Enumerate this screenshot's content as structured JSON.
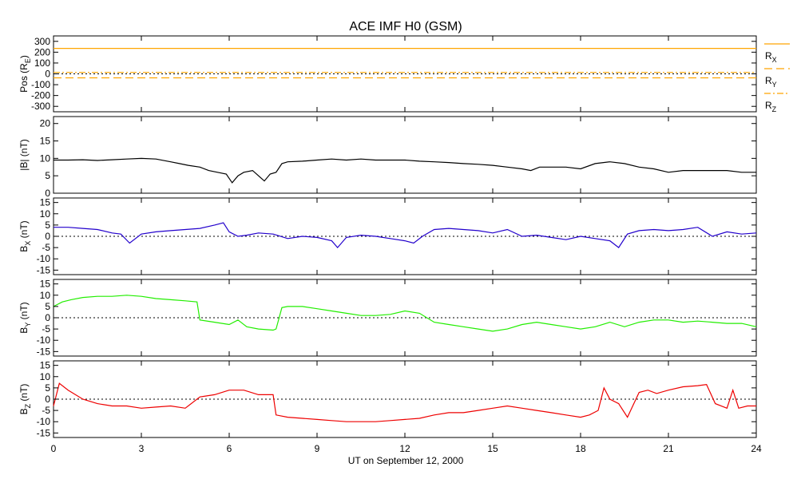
{
  "chart_data": {
    "title": "ACE IMF H0 (GSM)",
    "xlabel": "UT on September 12, 2000",
    "x_ticks": [
      "0",
      "3",
      "6",
      "9",
      "12",
      "15",
      "18",
      "21",
      "24"
    ],
    "x_range": [
      0,
      24
    ],
    "panels": [
      {
        "id": "pos",
        "type": "line",
        "ylabel_main": "Pos (R",
        "ylabel_sub": "E",
        "ylabel_tail": ")",
        "ylim": [
          -350,
          350
        ],
        "y_ticks": [
          300,
          200,
          100,
          0,
          -100,
          -200,
          -300
        ],
        "zero_line": true,
        "legend": [
          {
            "main": "R",
            "sub": "X",
            "style": "solid"
          },
          {
            "main": "R",
            "sub": "Y",
            "style": "dashed"
          },
          {
            "main": "R",
            "sub": "Z",
            "style": "dashdot"
          }
        ],
        "series": [
          {
            "name": "RX",
            "color": "#ffa500",
            "style": "solid",
            "x": [
              0,
              24
            ],
            "y": [
              235,
              235
            ]
          },
          {
            "name": "RY",
            "color": "#ffa500",
            "style": "dashed",
            "x": [
              0,
              24
            ],
            "y": [
              -37,
              -37
            ]
          },
          {
            "name": "RZ",
            "color": "#ffa500",
            "style": "dashdot",
            "x": [
              0,
              24
            ],
            "y": [
              13,
              13
            ]
          }
        ]
      },
      {
        "id": "btotal",
        "type": "line",
        "ylabel_main": "|B| (nT)",
        "ylim": [
          0,
          22
        ],
        "y_ticks": [
          20,
          15,
          10,
          5,
          0
        ],
        "zero_line": false,
        "series": [
          {
            "name": "|B|",
            "color": "#000000",
            "x": [
              0,
              0.5,
              1,
              1.5,
              2,
              2.5,
              3,
              3.5,
              4,
              4.3,
              4.6,
              5,
              5.3,
              5.6,
              5.9,
              6.1,
              6.3,
              6.5,
              6.8,
              7,
              7.2,
              7.4,
              7.6,
              7.8,
              8,
              8.5,
              9,
              9.5,
              10,
              10.5,
              11,
              11.5,
              12,
              12.5,
              13,
              13.5,
              14,
              14.5,
              15,
              15.5,
              16,
              16.3,
              16.6,
              17,
              17.5,
              18,
              18.5,
              19,
              19.5,
              20,
              20.5,
              21,
              21.5,
              22,
              22.5,
              23,
              23.5,
              24
            ],
            "y": [
              9.5,
              9.5,
              9.6,
              9.4,
              9.6,
              9.8,
              10,
              9.8,
              9,
              8.5,
              8,
              7.5,
              6.5,
              6,
              5.5,
              3,
              5,
              6,
              6.5,
              5,
              3.5,
              5.5,
              6,
              8.5,
              9,
              9.2,
              9.5,
              9.8,
              9.5,
              9.8,
              9.5,
              9.5,
              9.5,
              9.2,
              9,
              8.8,
              8.5,
              8.3,
              8,
              7.5,
              7,
              6.5,
              7.5,
              7.5,
              7.5,
              7,
              8.5,
              9,
              8.5,
              7.5,
              7,
              6,
              6.5,
              6.5,
              6.5,
              6.5,
              6,
              6
            ]
          }
        ]
      },
      {
        "id": "bx",
        "type": "line",
        "ylabel_main": "B",
        "ylabel_sub": "X",
        "ylabel_tail": " (nT)",
        "ylim": [
          -17,
          17
        ],
        "y_ticks": [
          15,
          10,
          5,
          0,
          -5,
          -10,
          -15
        ],
        "zero_line": true,
        "series": [
          {
            "name": "BX",
            "color": "#2200cc",
            "x": [
              0,
              0.5,
              1,
              1.5,
              2,
              2.3,
              2.6,
              3,
              3.5,
              4,
              4.5,
              5,
              5.5,
              5.8,
              6,
              6.3,
              6.6,
              7,
              7.5,
              8,
              8.5,
              9,
              9.5,
              9.7,
              10,
              10.5,
              11,
              11.5,
              12,
              12.3,
              12.6,
              13,
              13.5,
              14,
              14.5,
              15,
              15.5,
              16,
              16.5,
              17,
              17.5,
              18,
              18.5,
              19,
              19.3,
              19.6,
              20,
              20.5,
              21,
              21.5,
              22,
              22.5,
              23,
              23.5,
              24
            ],
            "y": [
              4,
              4,
              3.5,
              3,
              1.5,
              1,
              -3,
              1,
              2,
              2.5,
              3,
              3.5,
              5,
              6,
              2,
              0,
              0.5,
              1.5,
              1,
              -1,
              0,
              -0.5,
              -2,
              -5,
              -0.5,
              0.5,
              0,
              -1,
              -2,
              -3,
              0,
              3,
              3.5,
              3,
              2.5,
              1.5,
              3,
              0,
              0.5,
              -0.5,
              -1.5,
              0,
              -1,
              -2,
              -5,
              1,
              2.5,
              3,
              2.5,
              3,
              4,
              0,
              2,
              1,
              1.5
            ]
          }
        ]
      },
      {
        "id": "by",
        "type": "line",
        "ylabel_main": "B",
        "ylabel_sub": "Y",
        "ylabel_tail": " (nT)",
        "ylim": [
          -17,
          17
        ],
        "y_ticks": [
          15,
          10,
          5,
          0,
          -5,
          -10,
          -15
        ],
        "zero_line": true,
        "series": [
          {
            "name": "BY",
            "color": "#22ee00",
            "x": [
              0,
              0.3,
              0.6,
              1,
              1.5,
              2,
              2.5,
              3,
              3.5,
              4,
              4.5,
              4.9,
              5,
              5.5,
              6,
              6.3,
              6.6,
              7,
              7.5,
              7.6,
              7.8,
              8,
              8.5,
              9,
              9.5,
              10,
              10.5,
              11,
              11.5,
              12,
              12.5,
              13,
              13.5,
              14,
              14.5,
              15,
              15.5,
              16,
              16.5,
              17,
              17.5,
              18,
              18.5,
              19,
              19.5,
              20,
              20.5,
              21,
              21.5,
              22,
              22.5,
              23,
              23.5,
              24
            ],
            "y": [
              5,
              7,
              8,
              9,
              9.5,
              9.5,
              10,
              9.5,
              8.5,
              8,
              7.5,
              7,
              -1,
              -2,
              -3,
              -1,
              -4,
              -5,
              -5.5,
              -5,
              4.5,
              5,
              5,
              4,
              3,
              2,
              1,
              1,
              1.5,
              3,
              2,
              -2,
              -3,
              -4,
              -5,
              -6,
              -5,
              -3,
              -2,
              -3,
              -4,
              -5,
              -4,
              -2,
              -4,
              -2,
              -1,
              -1,
              -2,
              -1.5,
              -2,
              -2.5,
              -2.5,
              -4
            ]
          }
        ]
      },
      {
        "id": "bz",
        "type": "line",
        "ylabel_main": "B",
        "ylabel_sub": "Z",
        "ylabel_tail": " (nT)",
        "ylim": [
          -17,
          17
        ],
        "y_ticks": [
          15,
          10,
          5,
          0,
          -5,
          -10,
          -15
        ],
        "zero_line": true,
        "series": [
          {
            "name": "BZ",
            "color": "#ee0000",
            "x": [
              0,
              0.2,
              0.5,
              1,
              1.5,
              2,
              2.5,
              3,
              3.5,
              4,
              4.5,
              5,
              5.5,
              6,
              6.5,
              7,
              7.5,
              7.6,
              8,
              8.5,
              9,
              9.5,
              10,
              10.5,
              11,
              11.5,
              12,
              12.5,
              13,
              13.5,
              14,
              14.5,
              15,
              15.5,
              16,
              16.5,
              17,
              17.5,
              18,
              18.3,
              18.6,
              18.8,
              19,
              19.3,
              19.6,
              20,
              20.3,
              20.6,
              21,
              21.5,
              22,
              22.3,
              22.6,
              23,
              23.2,
              23.4,
              23.7,
              24
            ],
            "y": [
              -3,
              7,
              4,
              0,
              -2,
              -3,
              -3,
              -4,
              -3.5,
              -3,
              -4,
              1,
              2,
              4,
              4,
              2,
              2,
              -7,
              -8,
              -8.5,
              -9,
              -9.5,
              -10,
              -10,
              -10,
              -9.5,
              -9,
              -8.5,
              -7,
              -6,
              -6,
              -5,
              -4,
              -3,
              -4,
              -5,
              -6,
              -7,
              -8,
              -7,
              -5,
              5,
              0,
              -2,
              -8,
              3,
              4,
              2.5,
              4,
              5.5,
              6,
              6.5,
              -2,
              -4,
              4,
              -4,
              -3,
              -3
            ]
          }
        ]
      }
    ]
  }
}
